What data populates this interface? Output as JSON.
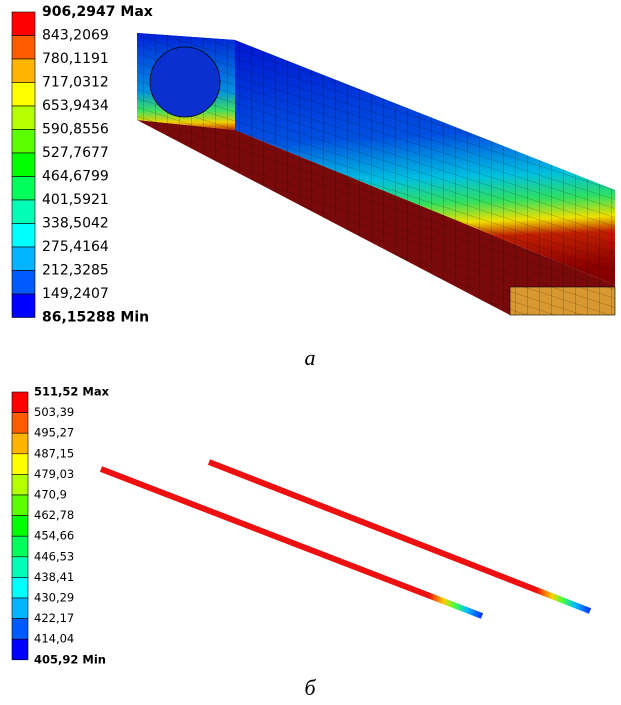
{
  "panels": [
    {
      "legend": [
        "906,2947 Max",
        "843,2069",
        "780,1191",
        "717,0312",
        "653,9434",
        "590,8556",
        "527,7677",
        "464,6799",
        "401,5921",
        "338,5042",
        "275,4164",
        "212,3285",
        "149,2407",
        "86,15288 Min"
      ],
      "caption": "а"
    },
    {
      "legend": [
        "511,52 Max",
        "503,39",
        "495,27",
        "487,15",
        "479,03",
        "470,9",
        "462,78",
        "454,66",
        "446,53",
        "438,41",
        "430,29",
        "422,17",
        "414,04",
        "405,92 Min"
      ],
      "caption": "б"
    }
  ]
}
